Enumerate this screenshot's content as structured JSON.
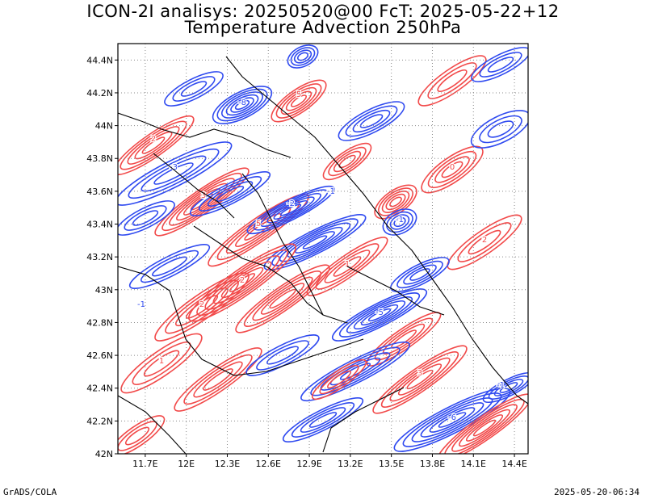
{
  "chart_data": {
    "type": "contour",
    "title": "ICON-2I analisys: 20250520@00 FcT: 2025-05-22+12",
    "subtitle": "Temperature Advection 250hPa",
    "xlabel": "",
    "ylabel": "",
    "x_ticks": [
      "11.7E",
      "12E",
      "12.3E",
      "12.6E",
      "12.9E",
      "13.2E",
      "13.5E",
      "13.8E",
      "14.1E",
      "14.4E"
    ],
    "y_ticks": [
      "44.4N",
      "44.2N",
      "44N",
      "43.8N",
      "43.6N",
      "43.4N",
      "43.2N",
      "43N",
      "42.8N",
      "42.6N",
      "42.4N",
      "42.2N",
      "42N"
    ],
    "xlim": [
      11.5,
      14.5
    ],
    "ylim": [
      42.0,
      44.5
    ],
    "grid": true,
    "contour_labels": [
      "-1",
      "-2",
      "-3",
      "-5",
      "-6",
      "-8",
      "0",
      "1",
      "2",
      "3",
      "5"
    ],
    "colors": {
      "positive": "#f24a4a",
      "negative": "#2f4af0",
      "coast": "#000000",
      "grid": "#888888"
    }
  },
  "footer": {
    "left": "GrADS/COLA",
    "right": "2025-05-20-06:34"
  }
}
